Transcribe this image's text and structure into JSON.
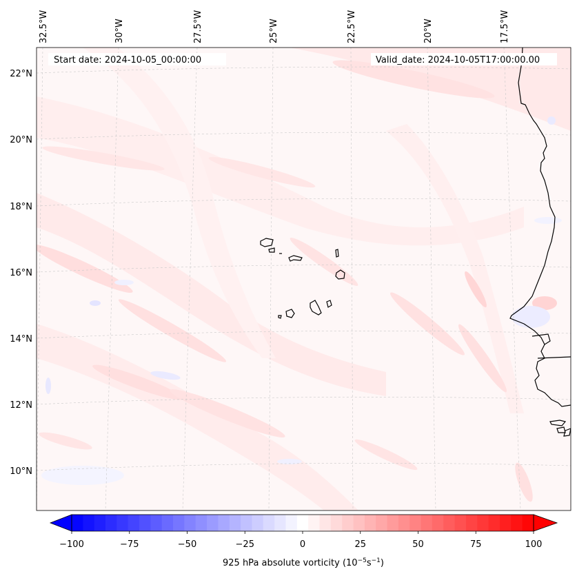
{
  "map": {
    "start_date_label": "Start date: 2024-10-05_00:00:00",
    "valid_date_label": "Valid_date: 2024-10-05T17:00:00.00",
    "lon_labels": [
      "32.5°W",
      "30°W",
      "27.5°W",
      "25°W",
      "22.5°W",
      "20°W",
      "17.5°W"
    ],
    "lat_labels": [
      "22°N",
      "20°N",
      "18°N",
      "16°N",
      "14°N",
      "12°N",
      "10°N"
    ],
    "colorbar": {
      "label": "925 hPa absolute vorticity (10",
      "label_exp1": "−5",
      "label_mid": "s",
      "label_exp2": "−1",
      "label_end": ")",
      "ticks": [
        "−100",
        "−75",
        "−50",
        "−25",
        "0",
        "25",
        "50",
        "75",
        "100"
      ],
      "min": -100,
      "max": 100,
      "levels": 41,
      "neg_color": "#0000ff",
      "pos_color": "#ff0000"
    },
    "colors": {
      "background": "#fef8f8",
      "coastline": "#000000",
      "gridline": "#bdbdbd"
    }
  }
}
